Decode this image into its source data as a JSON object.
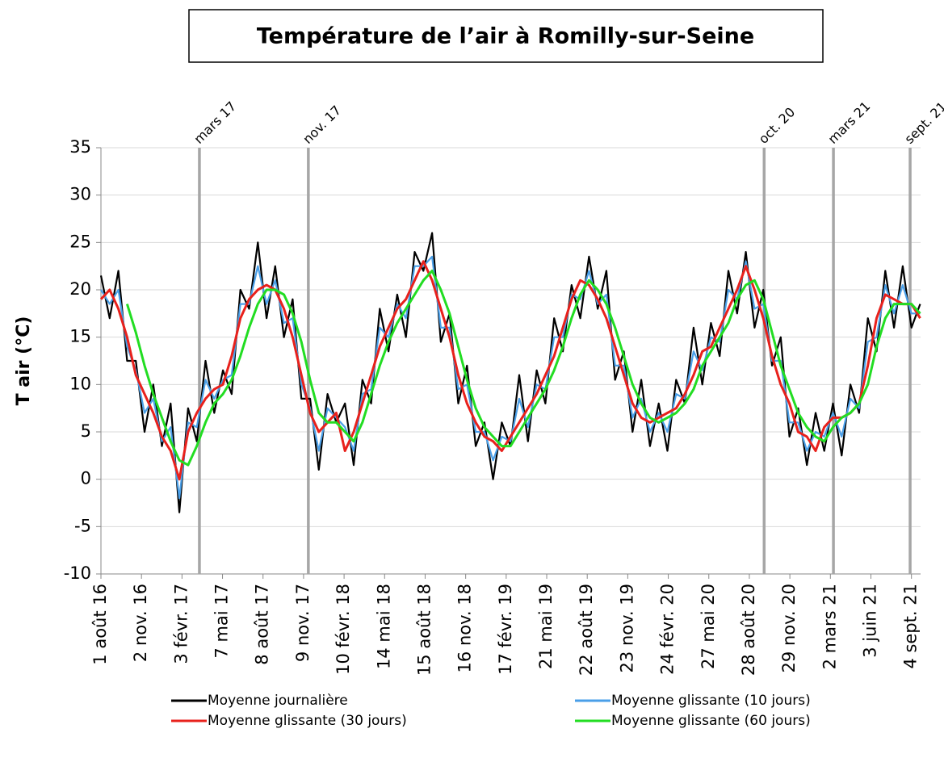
{
  "chart_data": {
    "type": "line",
    "title": "Température de l’air à Romilly-sur-Seine",
    "y_label": "T air (°C)",
    "ylim": [
      -10,
      35
    ],
    "yticks": [
      -10,
      -5,
      0,
      5,
      10,
      15,
      20,
      25,
      30,
      35
    ],
    "grid": true,
    "legend": "bottom",
    "xlim": [
      "2016-08-01",
      "2021-09-25"
    ],
    "xticks": [
      {
        "value": "2016-08-01",
        "label": "1 août 16"
      },
      {
        "value": "2016-11-02",
        "label": "2 nov. 16"
      },
      {
        "value": "2017-02-03",
        "label": "3 févr. 17"
      },
      {
        "value": "2017-05-07",
        "label": "7 mai 17"
      },
      {
        "value": "2017-08-08",
        "label": "8 août 17"
      },
      {
        "value": "2017-11-09",
        "label": "9 nov. 17"
      },
      {
        "value": "2018-02-10",
        "label": "10 févr. 18"
      },
      {
        "value": "2018-05-14",
        "label": "14 mai 18"
      },
      {
        "value": "2018-08-15",
        "label": "15 août 18"
      },
      {
        "value": "2018-11-16",
        "label": "16 nov. 18"
      },
      {
        "value": "2019-02-17",
        "label": "17 févr. 19"
      },
      {
        "value": "2019-05-21",
        "label": "21 mai 19"
      },
      {
        "value": "2019-08-22",
        "label": "22 août 19"
      },
      {
        "value": "2019-11-23",
        "label": "23 nov. 19"
      },
      {
        "value": "2020-02-24",
        "label": "24 févr. 20"
      },
      {
        "value": "2020-05-27",
        "label": "27 mai 20"
      },
      {
        "value": "2020-08-28",
        "label": "28 août 20"
      },
      {
        "value": "2020-11-29",
        "label": "29 nov. 20"
      },
      {
        "value": "2021-03-02",
        "label": "2 mars 21"
      },
      {
        "value": "2021-06-03",
        "label": "3 juin 21"
      },
      {
        "value": "2021-09-04",
        "label": "4 sept. 21"
      }
    ],
    "events": [
      {
        "x": "2017-03-15",
        "label": "mars 17"
      },
      {
        "x": "2017-11-20",
        "label": "nov. 17"
      },
      {
        "x": "2020-10-01",
        "label": "oct. 20"
      },
      {
        "x": "2021-03-09",
        "label": "mars 21"
      },
      {
        "x": "2021-09-01",
        "label": "sept. 21"
      }
    ],
    "x": [
      "2016-08-01",
      "2016-08-21",
      "2016-09-10",
      "2016-09-30",
      "2016-10-20",
      "2016-11-09",
      "2016-11-29",
      "2016-12-19",
      "2017-01-08",
      "2017-01-28",
      "2017-02-17",
      "2017-03-09",
      "2017-03-29",
      "2017-04-18",
      "2017-05-08",
      "2017-05-28",
      "2017-06-17",
      "2017-07-07",
      "2017-07-27",
      "2017-08-16",
      "2017-09-05",
      "2017-09-25",
      "2017-10-15",
      "2017-11-04",
      "2017-11-24",
      "2017-12-14",
      "2018-01-03",
      "2018-01-23",
      "2018-02-12",
      "2018-03-04",
      "2018-03-24",
      "2018-04-13",
      "2018-05-03",
      "2018-05-23",
      "2018-06-12",
      "2018-07-02",
      "2018-07-22",
      "2018-08-11",
      "2018-08-31",
      "2018-09-20",
      "2018-10-10",
      "2018-10-30",
      "2018-11-19",
      "2018-12-09",
      "2018-12-29",
      "2019-01-18",
      "2019-02-07",
      "2019-02-27",
      "2019-03-19",
      "2019-04-08",
      "2019-04-28",
      "2019-05-18",
      "2019-06-07",
      "2019-06-27",
      "2019-07-17",
      "2019-08-06",
      "2019-08-26",
      "2019-09-15",
      "2019-10-05",
      "2019-10-25",
      "2019-11-14",
      "2019-12-04",
      "2019-12-24",
      "2020-01-13",
      "2020-02-02",
      "2020-02-22",
      "2020-03-13",
      "2020-04-02",
      "2020-04-22",
      "2020-05-12",
      "2020-06-01",
      "2020-06-21",
      "2020-07-11",
      "2020-07-31",
      "2020-08-20",
      "2020-09-09",
      "2020-09-29",
      "2020-10-19",
      "2020-11-08",
      "2020-11-28",
      "2020-12-18",
      "2021-01-07",
      "2021-01-27",
      "2021-02-16",
      "2021-03-08",
      "2021-03-28",
      "2021-04-17",
      "2021-05-07",
      "2021-05-27",
      "2021-06-16",
      "2021-07-06",
      "2021-07-26",
      "2021-08-15",
      "2021-09-04",
      "2021-09-24"
    ],
    "series": [
      {
        "name": "Moyenne journalière",
        "color": "#000000",
        "width": 2.2,
        "values": [
          21.5,
          17,
          22,
          12.5,
          12.5,
          5,
          10,
          3.5,
          8,
          -3.5,
          7.5,
          4,
          12.5,
          7,
          11.5,
          9,
          20,
          18,
          25,
          17,
          22.5,
          15,
          19,
          8.5,
          8.5,
          1,
          9,
          6,
          8,
          1.5,
          10.5,
          8,
          18,
          13.5,
          19.5,
          15,
          24,
          22,
          26,
          14.5,
          17.5,
          8,
          12,
          3.5,
          6,
          0,
          6,
          3.5,
          11,
          4,
          11.5,
          8,
          17,
          13.5,
          20.5,
          17,
          23.5,
          18,
          22,
          10.5,
          13.5,
          5,
          10.5,
          3.5,
          8,
          3,
          10.5,
          8,
          16,
          10,
          16.5,
          13,
          22,
          17.5,
          24,
          16,
          20,
          12,
          15,
          4.5,
          7.5,
          1.5,
          7,
          3,
          8,
          2.5,
          10,
          7,
          17,
          13.5,
          22,
          16,
          22.5,
          16,
          18.5
        ]
      },
      {
        "name": "Moyenne glissante (10 jours)",
        "color": "#4a9fe8",
        "width": 2.2,
        "values": [
          20,
          18.5,
          20,
          14,
          11.5,
          7,
          8.5,
          4,
          5.5,
          -2,
          6,
          5.5,
          10.5,
          8.5,
          10.5,
          11,
          18.5,
          18.5,
          22.5,
          18.5,
          21,
          16.5,
          17,
          10,
          7.5,
          3,
          7.5,
          6.5,
          5.5,
          3,
          9,
          9.5,
          16,
          15,
          18.5,
          17,
          22.5,
          22.5,
          23.5,
          16,
          16,
          9.5,
          10,
          5,
          5,
          2,
          4.5,
          4,
          8.5,
          5.5,
          10,
          9.5,
          15,
          15,
          19.5,
          19,
          22,
          18.5,
          19.5,
          12,
          12,
          6.5,
          8.5,
          5,
          7,
          5,
          9,
          8.5,
          13.5,
          11.5,
          15,
          14.5,
          20,
          19,
          23,
          18,
          18.5,
          12.5,
          12.5,
          6,
          6,
          3,
          5,
          4.5,
          7,
          4.5,
          8.5,
          7.5,
          14.5,
          15,
          20.5,
          17.5,
          20.5,
          17.5,
          17.5
        ]
      },
      {
        "name": "Moyenne glissante (30 jours)",
        "color": "#e8211c",
        "width": 3,
        "values": [
          19,
          20,
          18,
          15,
          11,
          9,
          7,
          4.5,
          3,
          0,
          5,
          7,
          8.5,
          9.5,
          10,
          13,
          17,
          19,
          20,
          20.5,
          20,
          18,
          15,
          11,
          7,
          5,
          6,
          7,
          3,
          5,
          8,
          11,
          14,
          16,
          18,
          19,
          21,
          23,
          21,
          18,
          15,
          11,
          8,
          6,
          4.5,
          4,
          3,
          4.5,
          6,
          7.5,
          9,
          11,
          13,
          16,
          19,
          21,
          20.5,
          19,
          17,
          14,
          11,
          8,
          6.5,
          6,
          6.5,
          7,
          7.5,
          9,
          11,
          13.5,
          14,
          16,
          18,
          20,
          22.5,
          20,
          17,
          13,
          10,
          8,
          5,
          4.5,
          3,
          5.5,
          6.5,
          6.5,
          7,
          8,
          12,
          17,
          19.5,
          19,
          18.5,
          18.5,
          17
        ]
      },
      {
        "name": "Moyenne glissante (60 jours)",
        "color": "#22dd22",
        "width": 3,
        "values": [
          null,
          null,
          null,
          18.5,
          15.5,
          12,
          9,
          6.5,
          4,
          2,
          1.5,
          3.5,
          6,
          8,
          9,
          10.5,
          13,
          16,
          18.5,
          20,
          20,
          19.5,
          17.5,
          14.5,
          10.5,
          7,
          6,
          6,
          5,
          4,
          6,
          9,
          12,
          14.5,
          16.5,
          18,
          19.5,
          21,
          22,
          20,
          17.5,
          14,
          10.5,
          7.5,
          5.5,
          4.5,
          3.5,
          3.5,
          5,
          6.5,
          8,
          9.5,
          11.5,
          14,
          17,
          19.5,
          21,
          20,
          18.5,
          16,
          13,
          10,
          8,
          6.5,
          6,
          6.5,
          7,
          8,
          9.5,
          12,
          13.5,
          15,
          16.5,
          19,
          20.5,
          21,
          19,
          15.5,
          12,
          9.5,
          7,
          5.5,
          4.5,
          4,
          5.5,
          6.5,
          7,
          8,
          10,
          14,
          17,
          18.5,
          18.5,
          18.5,
          17.5
        ]
      }
    ]
  }
}
